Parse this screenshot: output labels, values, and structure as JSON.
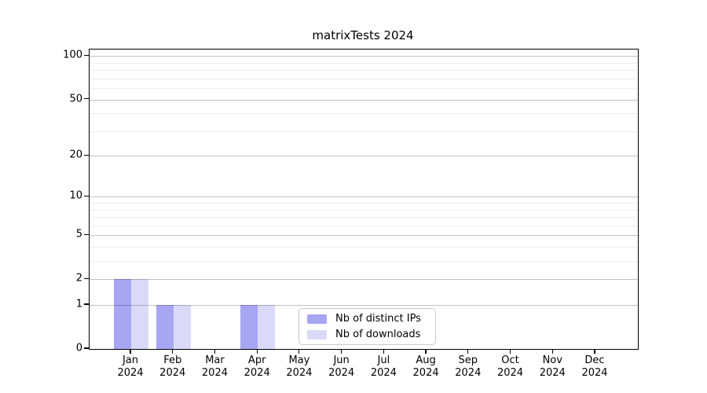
{
  "chart_data": {
    "type": "bar",
    "title": "matrixTests 2024",
    "categories": [
      "Jan",
      "Feb",
      "Mar",
      "Apr",
      "May",
      "Jun",
      "Jul",
      "Aug",
      "Sep",
      "Oct",
      "Nov",
      "Dec"
    ],
    "category_year": "2024",
    "series": [
      {
        "name": "Nb of distinct IPs",
        "color": "#a6a6f2",
        "values": [
          2,
          1,
          0,
          1,
          0,
          0,
          0,
          0,
          0,
          0,
          0,
          0
        ]
      },
      {
        "name": "Nb of downloads",
        "color": "#dadaf8",
        "values": [
          2,
          1,
          0,
          1,
          0,
          0,
          0,
          0,
          0,
          0,
          0,
          0
        ]
      }
    ],
    "xlabel": "",
    "ylabel": "",
    "y_axis": {
      "scale": "log1p",
      "ticks": [
        0,
        1,
        2,
        5,
        10,
        20,
        50,
        100
      ],
      "minor_ticks": [
        3,
        4,
        6,
        7,
        8,
        9,
        30,
        40,
        60,
        70,
        80,
        90
      ],
      "display_max": 111
    },
    "grid": "on",
    "legend_position": "lower center"
  }
}
